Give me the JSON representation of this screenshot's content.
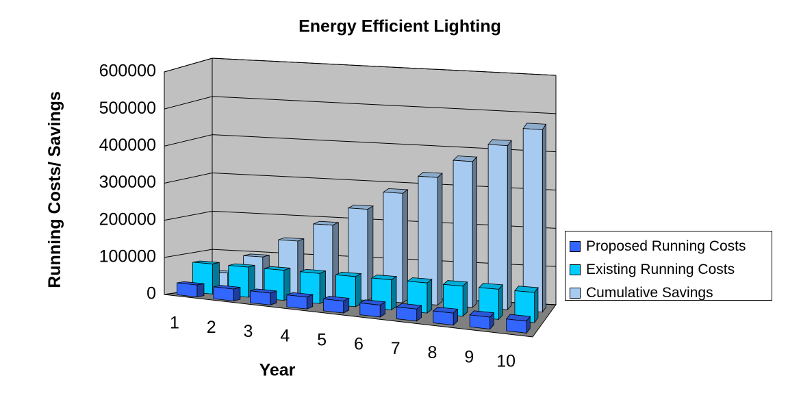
{
  "chart_data": {
    "type": "bar3d",
    "title": "Energy Efficient Lighting",
    "x_label": "Year",
    "y_label": "Running Costs/ Savings",
    "categories": [
      "1",
      "2",
      "3",
      "4",
      "5",
      "6",
      "7",
      "8",
      "9",
      "10"
    ],
    "series": [
      {
        "name": "Proposed Running Costs",
        "color": "#3366ff",
        "values": [
          32000,
          32000,
          32000,
          32000,
          32000,
          32000,
          32000,
          32000,
          32000,
          32000
        ]
      },
      {
        "name": "Existing Running Costs",
        "color": "#00ccff",
        "values": [
          80000,
          80000,
          80000,
          80000,
          80000,
          80000,
          80000,
          80000,
          80000,
          80000
        ]
      },
      {
        "name": "Cumulative Savings",
        "color": "#a6caf0",
        "values": [
          48000,
          96000,
          144000,
          192000,
          240000,
          288000,
          336000,
          384000,
          432000,
          480000
        ]
      }
    ],
    "ylim": [
      0,
      600000
    ],
    "yticks": [
      0,
      100000,
      200000,
      300000,
      400000,
      500000,
      600000
    ],
    "grid": true,
    "legend": "right"
  }
}
